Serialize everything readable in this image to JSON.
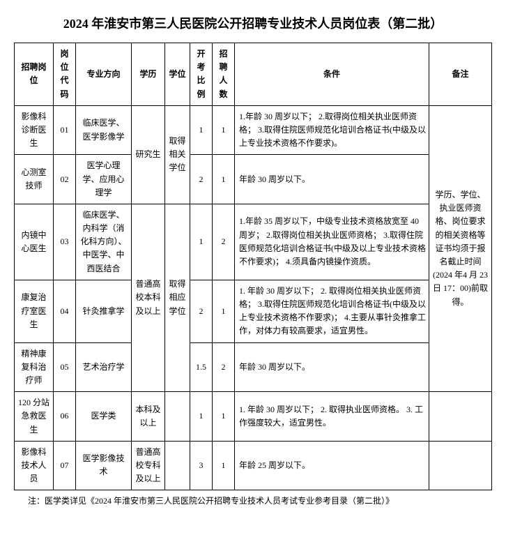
{
  "title": "2024 年淮安市第三人民医院公开招聘专业技术人员岗位表（第二批）",
  "headers": {
    "position": "招聘岗位",
    "code": "岗位代码",
    "major": "专业方向",
    "education": "学历",
    "degree": "学位",
    "ratio": "开考比例",
    "number": "招聘人数",
    "conditions": "条件",
    "note": "备注"
  },
  "rows": [
    {
      "position": "影像科诊断医生",
      "code": "01",
      "major": "临床医学、医学影像学",
      "education": "研究生",
      "degree": "取得相关学位",
      "ratio": "1",
      "number": "1",
      "conditions": "1.年龄 30 周岁以下；\n2.取得岗位相关执业医师资格；\n3.取得住院医师规范化培训合格证书(中级及以上专业技术资格不作要求)。"
    },
    {
      "position": "心测室技师",
      "code": "02",
      "major": "医学心理学、应用心理学",
      "ratio": "2",
      "number": "1",
      "conditions": "年龄 30 周岁以下。"
    },
    {
      "position": "内镜中心医生",
      "code": "03",
      "major": "临床医学、内科学（消化科方向）、中医学、中西医结合",
      "education": "普通高校本科及以上",
      "degree": "取得相应学位",
      "ratio": "1",
      "number": "2",
      "conditions": "1.年龄 35 周岁以下，中级专业技术资格放宽至 40 周岁；\n2.取得岗位相关执业医师资格；\n3.取得住院医师规范化培训合格证书(中级及以上专业技术资格不作要求)；\n4.须具备内镜操作资质。"
    },
    {
      "position": "康复治疗室医生",
      "code": "04",
      "major": "针灸推拿学",
      "ratio": "2",
      "number": "1",
      "conditions": "1. 年龄 30 周岁以下；\n2. 取得岗位相关执业医师资格；\n3.取得住院医师规范化培训合格证书(中级及以上专业技术资格不作要求)；\n4.主要从事针灸推拿工作，对体力有较高要求，适宜男性。"
    },
    {
      "position": "精神康复科治疗师",
      "code": "05",
      "major": "艺术治疗学",
      "ratio": "1.5",
      "number": "2",
      "conditions": "年龄 30 周岁以下。"
    },
    {
      "position": "120 分站急救医生",
      "code": "06",
      "major": "医学类",
      "education": "本科及以上",
      "ratio": "1",
      "number": "1",
      "conditions": "1. 年龄 30 周岁以下；\n2. 取得执业医师资格。\n3. 工作强度较大，适宜男性。"
    },
    {
      "position": "影像科技术人员",
      "code": "07",
      "major": "医学影像技术",
      "education": "普通高校专科及以上",
      "ratio": "3",
      "number": "1",
      "conditions": "年龄 25 周岁以下。"
    }
  ],
  "merged_note": "学历、学位、执业医师资格、岗位要求的相关资格等证书均须于报名截止时间(2024 年4 月 23 日 17：00)前取得。",
  "footnote": "注：医学类详见《2024 年淮安市第三人民医院公开招聘专业技术人员考试专业参考目录（第二批）》"
}
